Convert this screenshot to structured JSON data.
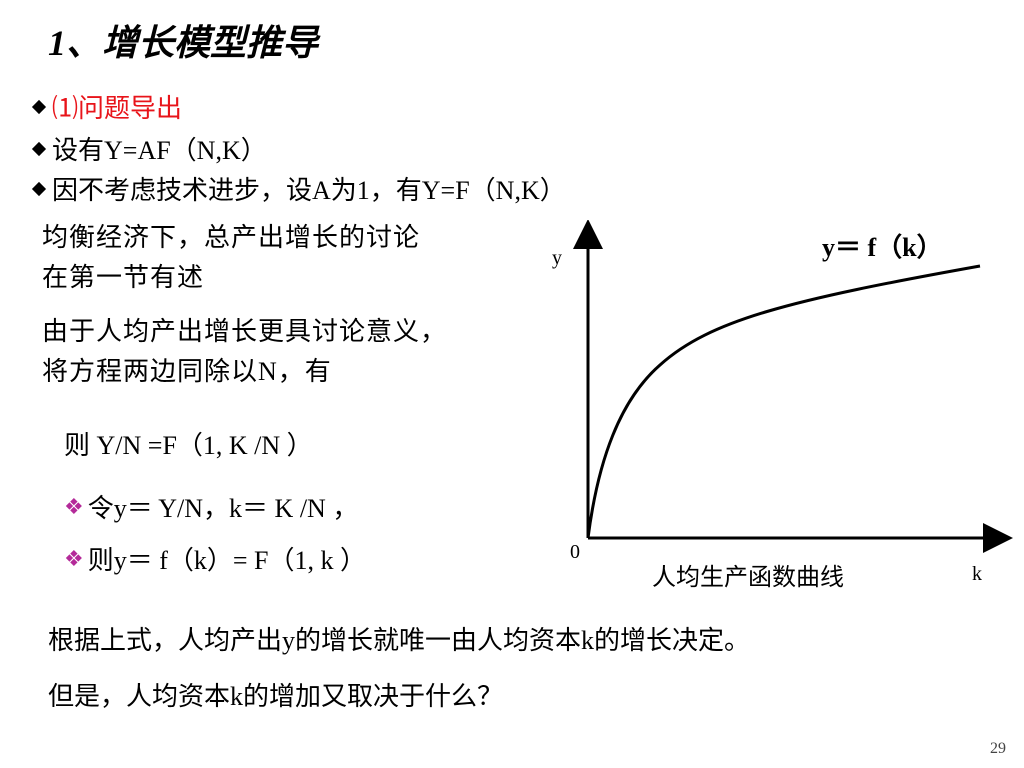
{
  "title": "1、增长模型推导",
  "bullets": [
    {
      "text": "⑴问题导出",
      "color": "#e8141a"
    },
    {
      "text": "设有Y=AF（N,K）",
      "color": "#000000"
    },
    {
      "text": "因不考虑技术进步，设A为1，有Y=F（N,K）",
      "color": "#000000"
    }
  ],
  "paragraph1": [
    "均衡经济下，总产出增长的讨论",
    "在第一节有述"
  ],
  "paragraph2": [
    "由于人均产出增长更具讨论意义，",
    "将方程两边同除以N，有"
  ],
  "equation": "则 Y/N =F（1, K /N ）",
  "sub_bullets": [
    "令y＝ Y/N，k＝ K /N ，",
    "则y＝ f（k）= F（1, k ）"
  ],
  "graph": {
    "y_axis_label": "y",
    "x_axis_label": "k",
    "origin_label": "0",
    "curve_label": "y＝ f（k）",
    "caption": "人均生产函数曲线"
  },
  "conclusion": [
    "根据上式，人均产出y的增长就唯一由人均资本k的增长决定。",
    "但是，人均资本k的增加又取决于什么？"
  ],
  "page_number": "29",
  "icons": {
    "bullet": "diamond-icon",
    "sub_bullet": "four-diamond-icon"
  },
  "colors": {
    "heading_accent": "#e8141a",
    "sub_bullet_mark": "#b42a99"
  }
}
